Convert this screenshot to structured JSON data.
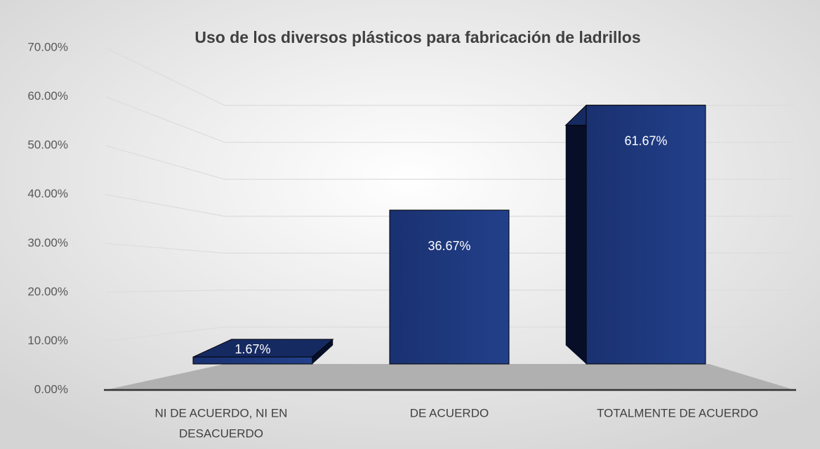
{
  "chart_data": {
    "type": "bar3d",
    "title": "Uso de los diversos plásticos para fabricación de ladrillos",
    "categories": [
      [
        "NI DE ACUERDO, NI EN",
        "DESACUERDO"
      ],
      [
        "DE ACUERDO"
      ],
      [
        "TOTALMENTE DE ACUERDO"
      ]
    ],
    "values": [
      1.67,
      36.67,
      61.67
    ],
    "value_labels": [
      "1.67%",
      "36.67%",
      "61.67%"
    ],
    "color": "#1f3a7a",
    "ylim": [
      0,
      70
    ],
    "yticks": [
      {
        "value": 0,
        "label": "0.00%"
      },
      {
        "value": 10,
        "label": "10.00%"
      },
      {
        "value": 20,
        "label": "20.00%"
      },
      {
        "value": 30,
        "label": "30.00%"
      },
      {
        "value": 40,
        "label": "40.00%"
      },
      {
        "value": 50,
        "label": "50.00%"
      },
      {
        "value": 60,
        "label": "60.00%"
      },
      {
        "value": 70,
        "label": "70.00%"
      }
    ],
    "grid": true
  }
}
